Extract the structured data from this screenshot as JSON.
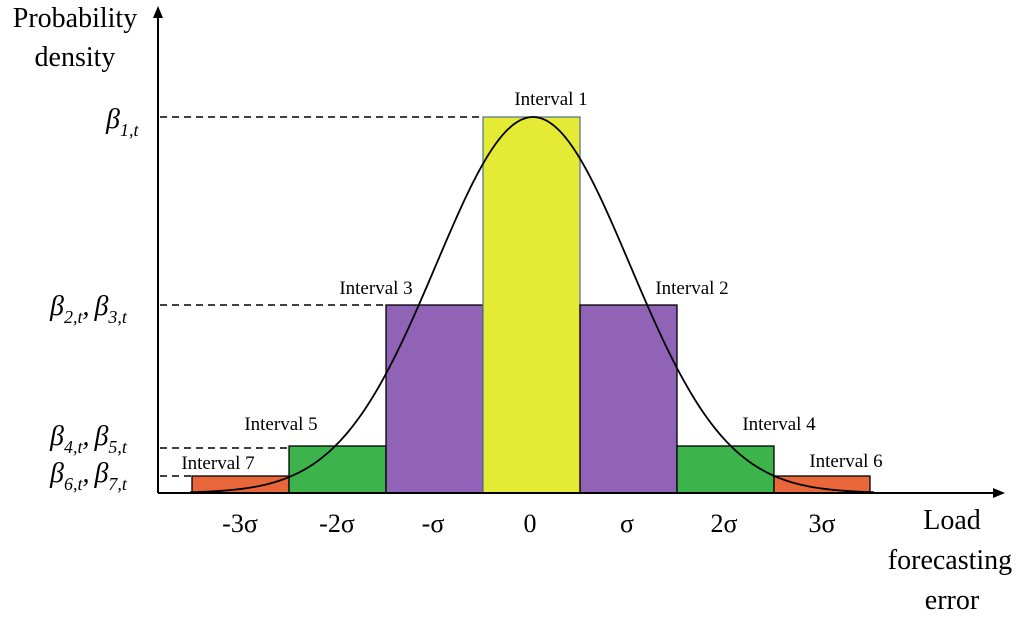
{
  "axes": {
    "y_title": [
      "Probability",
      "density"
    ],
    "x_title": [
      "Load",
      "forecasting",
      "error"
    ]
  },
  "y_labels": [
    {
      "id": "b1",
      "parts": [
        {
          "sym": "β",
          "sub": "1,t"
        }
      ]
    },
    {
      "id": "b23",
      "parts": [
        {
          "sym": "β",
          "sub": "2,t"
        },
        {
          "sym": "β",
          "sub": "3,t"
        }
      ]
    },
    {
      "id": "b45",
      "parts": [
        {
          "sym": "β",
          "sub": "4,t"
        },
        {
          "sym": "β",
          "sub": "5,t"
        }
      ]
    },
    {
      "id": "b67",
      "parts": [
        {
          "sym": "β",
          "sub": "6,t"
        },
        {
          "sym": "β",
          "sub": "7,t"
        }
      ]
    }
  ],
  "y_label_separator": ",",
  "x_ticks": [
    "-3σ",
    "-2σ",
    "-σ",
    "0",
    "σ",
    "2σ",
    "3σ"
  ],
  "intervals": [
    {
      "label": "Interval 1",
      "color": "#e5ea34"
    },
    {
      "label": "Interval 2",
      "color": "#9163b7"
    },
    {
      "label": "Interval 3",
      "color": "#9163b7"
    },
    {
      "label": "Interval 4",
      "color": "#3cb44b"
    },
    {
      "label": "Interval 5",
      "color": "#3cb44b"
    },
    {
      "label": "Interval 6",
      "color": "#e8663a"
    },
    {
      "label": "Interval 7",
      "color": "#e8663a"
    }
  ],
  "curve": {
    "type": "normal-density",
    "color": "#000000"
  }
}
